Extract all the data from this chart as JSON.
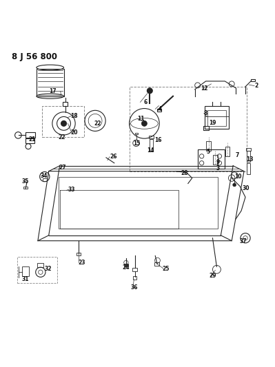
{
  "title": "8 J 56 800",
  "bg_color": "#ffffff",
  "line_color": "#222222",
  "figsize": [
    3.99,
    5.33
  ],
  "dpi": 100
}
